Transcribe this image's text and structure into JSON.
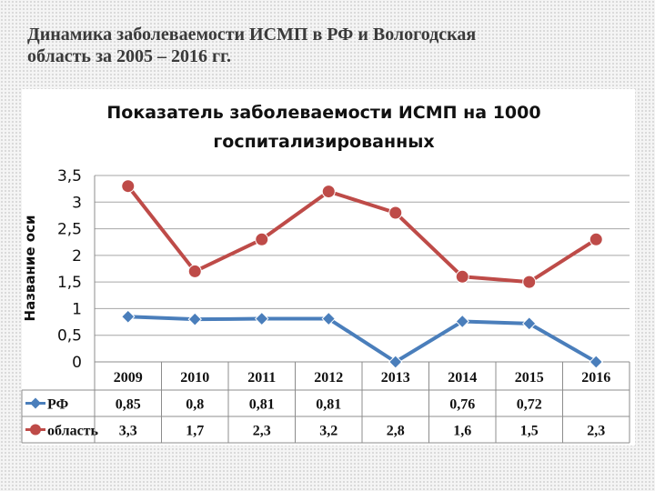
{
  "slide": {
    "title_line1": "Динамика заболеваемости ИСМП в РФ и Вологодская",
    "title_line2": "область за 2005 – 2016 гг."
  },
  "chart_data": {
    "type": "line",
    "title_line1": "Показатель заболеваемости ИСМП на 1000",
    "title_line2": "госпитализированных",
    "xlabel": "",
    "ylabel": "Название оси",
    "ylim": [
      0,
      3.5
    ],
    "yticks": [
      "0",
      "0,5",
      "1",
      "1,5",
      "2",
      "2,5",
      "3",
      "3,5"
    ],
    "grid": true,
    "legend": "data-table",
    "categories": [
      "2009",
      "2010",
      "2011",
      "2012",
      "2013",
      "2014",
      "2015",
      "2016"
    ],
    "series": [
      {
        "name": "РФ",
        "color": "#4a7ebb",
        "values": [
          0.85,
          0.8,
          0.81,
          0.81,
          0,
          0.76,
          0.72,
          0
        ],
        "labels": [
          "0,85",
          "0,8",
          "0,81",
          "0,81",
          "",
          "0,76",
          "0,72",
          ""
        ]
      },
      {
        "name": "область",
        "color": "#be4b48",
        "values": [
          3.3,
          1.7,
          2.3,
          3.2,
          2.8,
          1.6,
          1.5,
          2.3
        ],
        "labels": [
          "3,3",
          "1,7",
          "2,3",
          "3,2",
          "2,8",
          "1,6",
          "1,5",
          "2,3"
        ]
      }
    ]
  }
}
